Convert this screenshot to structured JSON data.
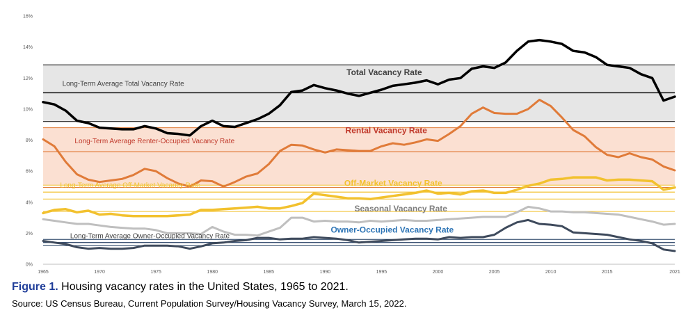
{
  "caption": {
    "figure_label": "Figure 1.",
    "title": "Housing vacancy rates in the United States, 1965 to 2021",
    "source": "Source: US Census Bureau, Current Population Survey/Housing Vacancy Survey, March 15, 2022."
  },
  "chart_data": {
    "type": "line",
    "xlim": [
      1965,
      2021
    ],
    "ylim": [
      0,
      16
    ],
    "x_ticks": [
      "1965",
      "1970",
      "1975",
      "1980",
      "1985",
      "1990",
      "1995",
      "2000",
      "2005",
      "2010",
      "2015",
      "2021"
    ],
    "x_tick_values": [
      1965,
      1970,
      1975,
      1980,
      1985,
      1990,
      1995,
      2000,
      2005,
      2010,
      2015,
      2021
    ],
    "y_ticks": [
      "0%",
      "2%",
      "4%",
      "6%",
      "8%",
      "10%",
      "12%",
      "14%",
      "16%"
    ],
    "y_tick_values": [
      0,
      2,
      4,
      6,
      8,
      10,
      12,
      14,
      16
    ],
    "grid": false,
    "legend": "none",
    "years": [
      1965,
      1966,
      1967,
      1968,
      1969,
      1970,
      1971,
      1972,
      1973,
      1974,
      1975,
      1976,
      1977,
      1978,
      1979,
      1980,
      1981,
      1982,
      1983,
      1984,
      1985,
      1986,
      1987,
      1988,
      1989,
      1990,
      1991,
      1992,
      1993,
      1994,
      1995,
      1996,
      1997,
      1998,
      1999,
      2000,
      2001,
      2002,
      2003,
      2004,
      2005,
      2006,
      2007,
      2008,
      2009,
      2010,
      2011,
      2012,
      2013,
      2014,
      2015,
      2016,
      2017,
      2018,
      2019,
      2020,
      2021
    ],
    "bands": [
      {
        "name": "total-band",
        "from": 9.2,
        "to": 12.85,
        "color": "#e6e6e6",
        "line_color": "#000000"
      },
      {
        "name": "rental-band",
        "from": 4.95,
        "to": 8.8,
        "color": "#fbe0d2",
        "line_color": "#e07b39"
      },
      {
        "name": "offmarket-band",
        "from": 4.2,
        "to": 5.1,
        "color": "#ffffff",
        "line_color": "#f2c12e"
      },
      {
        "name": "seasonal-band",
        "from": 3.4,
        "to": 3.4,
        "color": "#ffffff",
        "line_color": "#f2c12e"
      },
      {
        "name": "owner-band",
        "from": 1.2,
        "to": 1.6,
        "color": "#ffffff",
        "line_color": "#1f3a5f"
      }
    ],
    "averages": [
      {
        "label": "Long-Term Average Total Vacancy Rate",
        "value": 11.05,
        "color": "#000000",
        "text_color": "#404040",
        "label_x": 1966.7,
        "label_y": 11.5
      },
      {
        "label": "Long-Term Average Renter-Occupied Vacancy Rate",
        "value": 7.25,
        "color": "#e07b39",
        "text_color": "#c0392b",
        "label_x": 1967.8,
        "label_y": 7.8
      },
      {
        "label": "Long-Term Average Off-Market Vacancy Rate",
        "value": 4.65,
        "color": "#f2c12e",
        "text_color": "#f2c12e",
        "label_x": 1966.5,
        "label_y": 4.95
      },
      {
        "label": "Long-Term Average Owner-Occupied Vacancy Rate",
        "value": 1.4,
        "color": "#1f3a5f",
        "text_color": "#404040",
        "label_x": 1967.4,
        "label_y": 1.68
      }
    ],
    "series": [
      {
        "name": "Total Vacancy Rate",
        "color": "#000000",
        "width": 3.5,
        "label_x": 1991.9,
        "label_y": 12.2,
        "label_color": "#404040",
        "values": [
          10.45,
          10.3,
          9.9,
          9.25,
          9.1,
          8.8,
          8.75,
          8.7,
          8.7,
          8.9,
          8.75,
          8.45,
          8.4,
          8.3,
          8.9,
          9.25,
          8.9,
          8.85,
          9.1,
          9.35,
          9.7,
          10.25,
          11.1,
          11.2,
          11.55,
          11.35,
          11.2,
          11.0,
          10.85,
          11.05,
          11.25,
          11.5,
          11.6,
          11.7,
          11.85,
          11.6,
          11.9,
          12.0,
          12.6,
          12.75,
          12.65,
          13.0,
          13.75,
          14.35,
          14.45,
          14.35,
          14.2,
          13.75,
          13.65,
          13.35,
          12.85,
          12.75,
          12.65,
          12.25,
          12.0,
          10.55,
          10.8
        ]
      },
      {
        "name": "Rental Vacancy Rate",
        "color": "#e07b39",
        "width": 3,
        "label_x": 1991.8,
        "label_y": 8.45,
        "label_color": "#c0392b",
        "values": [
          8.05,
          7.6,
          6.6,
          5.8,
          5.45,
          5.3,
          5.4,
          5.5,
          5.75,
          6.15,
          6.0,
          5.55,
          5.2,
          5.0,
          5.4,
          5.35,
          5.0,
          5.3,
          5.65,
          5.85,
          6.45,
          7.3,
          7.7,
          7.65,
          7.4,
          7.2,
          7.4,
          7.35,
          7.3,
          7.3,
          7.6,
          7.8,
          7.7,
          7.85,
          8.05,
          7.95,
          8.4,
          8.9,
          9.7,
          10.1,
          9.75,
          9.7,
          9.7,
          10.0,
          10.6,
          10.2,
          9.45,
          8.65,
          8.25,
          7.55,
          7.05,
          6.9,
          7.15,
          6.9,
          6.75,
          6.3,
          6.05
        ]
      },
      {
        "name": "Off-Market Vacancy Rate",
        "color": "#f2c12e",
        "width": 3.5,
        "label_x": 1991.7,
        "label_y": 5.05,
        "label_color": "#f2c12e",
        "values": [
          3.3,
          3.5,
          3.55,
          3.35,
          3.45,
          3.2,
          3.25,
          3.15,
          3.1,
          3.1,
          3.1,
          3.1,
          3.15,
          3.2,
          3.5,
          3.5,
          3.55,
          3.6,
          3.65,
          3.7,
          3.6,
          3.6,
          3.75,
          3.95,
          4.55,
          4.45,
          4.35,
          4.25,
          4.25,
          4.2,
          4.3,
          4.4,
          4.5,
          4.6,
          4.75,
          4.55,
          4.6,
          4.5,
          4.7,
          4.75,
          4.6,
          4.6,
          4.8,
          5.05,
          5.2,
          5.45,
          5.5,
          5.6,
          5.6,
          5.6,
          5.4,
          5.45,
          5.45,
          5.4,
          5.35,
          4.8,
          4.95
        ]
      },
      {
        "name": "Seasonal Vacancy Rate",
        "color": "#bfbfbf",
        "width": 3,
        "label_x": 1992.6,
        "label_y": 3.4,
        "label_color": "#7f7f7f",
        "values": [
          2.9,
          2.8,
          2.7,
          2.6,
          2.6,
          2.5,
          2.4,
          2.35,
          2.3,
          2.3,
          2.2,
          2.0,
          2.0,
          2.0,
          1.95,
          2.4,
          2.1,
          1.9,
          1.9,
          1.85,
          2.1,
          2.35,
          3.0,
          3.0,
          2.75,
          2.8,
          2.75,
          2.75,
          2.7,
          2.8,
          2.75,
          2.8,
          2.85,
          2.8,
          2.8,
          2.85,
          2.9,
          2.95,
          3.0,
          3.05,
          3.05,
          3.05,
          3.35,
          3.7,
          3.6,
          3.4,
          3.4,
          3.35,
          3.35,
          3.3,
          3.25,
          3.2,
          3.05,
          2.9,
          2.75,
          2.55,
          2.6
        ]
      },
      {
        "name": "Owner-Occupied Vacancy Rate",
        "color": "#3e4a5c",
        "width": 3,
        "label_x": 1990.5,
        "label_y": 2.05,
        "label_color": "#2e75b6",
        "values": [
          1.5,
          1.4,
          1.3,
          1.1,
          1.0,
          1.05,
          1.0,
          1.0,
          1.05,
          1.2,
          1.2,
          1.2,
          1.15,
          1.0,
          1.15,
          1.35,
          1.4,
          1.5,
          1.55,
          1.7,
          1.7,
          1.6,
          1.65,
          1.65,
          1.75,
          1.7,
          1.65,
          1.55,
          1.4,
          1.45,
          1.5,
          1.55,
          1.6,
          1.65,
          1.65,
          1.6,
          1.75,
          1.7,
          1.75,
          1.75,
          1.9,
          2.35,
          2.7,
          2.85,
          2.6,
          2.55,
          2.45,
          2.05,
          2.0,
          1.95,
          1.9,
          1.75,
          1.6,
          1.5,
          1.35,
          0.95,
          0.85
        ]
      }
    ]
  }
}
